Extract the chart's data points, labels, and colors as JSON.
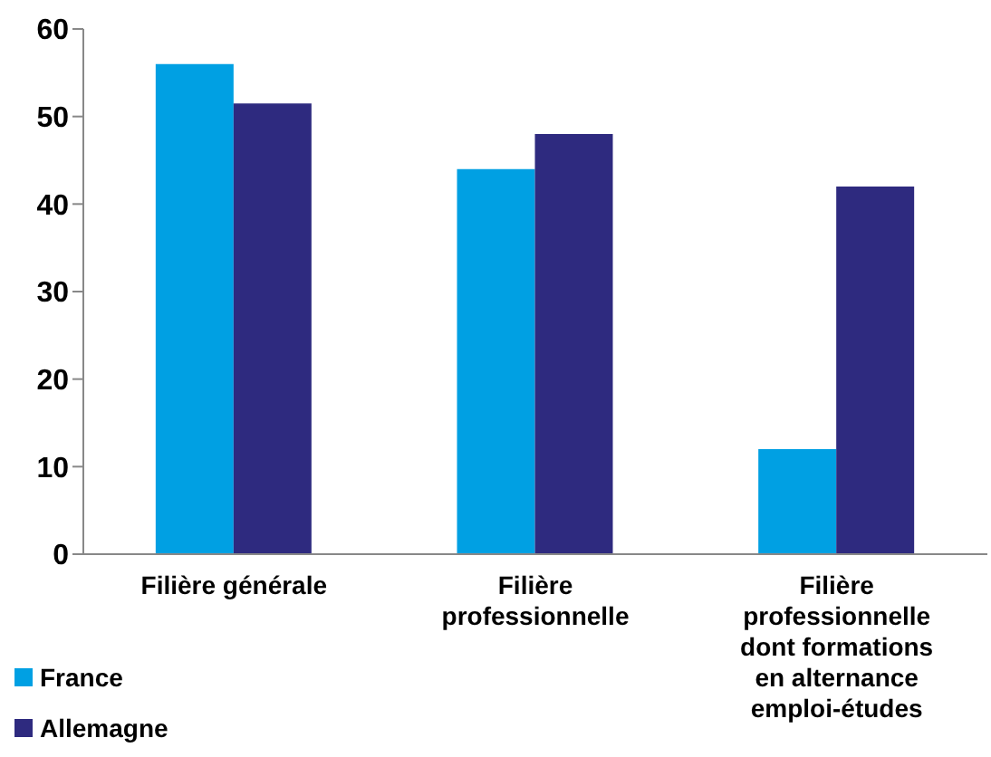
{
  "chart_data": {
    "type": "bar",
    "categories": [
      "Filière générale",
      "Filière professionnelle",
      "Filière professionnelle dont formations en alternance emploi-études"
    ],
    "series": [
      {
        "name": "France",
        "color": "#00a0e3",
        "values": [
          56,
          44,
          12
        ]
      },
      {
        "name": "Allemagne",
        "color": "#2e2a7f",
        "values": [
          51.5,
          48,
          42
        ]
      }
    ],
    "ylim": [
      0,
      60
    ],
    "yticks": [
      0,
      10,
      20,
      30,
      40,
      50,
      60
    ],
    "grid": false,
    "legend": "bottom left"
  }
}
